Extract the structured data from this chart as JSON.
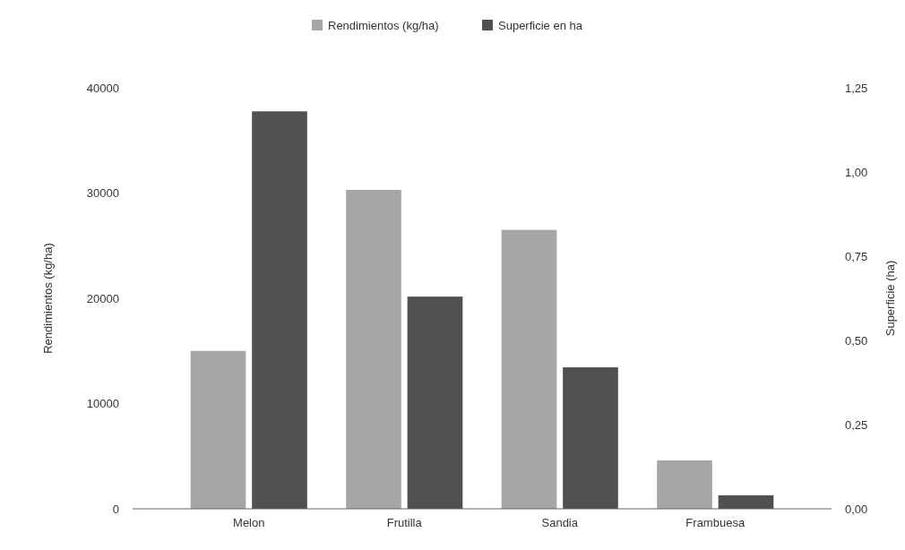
{
  "chart_data": {
    "type": "bar",
    "categories": [
      "Melon",
      "Frutilla",
      "Sandia",
      "Frambuesa"
    ],
    "series": [
      {
        "name": "Rendimientos (kg/ha)",
        "color": "#a6a6a6",
        "values": [
          15000,
          30300,
          26500,
          4600
        ]
      },
      {
        "name": "Superficie en ha",
        "color": "#505050",
        "values": [
          1.18,
          0.63,
          0.42,
          0.04
        ],
        "axis": "y2"
      }
    ],
    "ylabel": "Rendimientos (kg/ha)",
    "y2label": "Superficie (ha)",
    "ylim": [
      0,
      40000
    ],
    "yticks": [
      0,
      10000,
      20000,
      30000,
      40000
    ],
    "y2lim": [
      0,
      1.25
    ],
    "y2ticks": [
      {
        "value": 0,
        "label": "0,00"
      },
      {
        "value": 0.25,
        "label": "0,25"
      },
      {
        "value": 0.5,
        "label": "0,50"
      },
      {
        "value": 0.75,
        "label": "0,75"
      },
      {
        "value": 1,
        "label": "1,00"
      },
      {
        "value": 1.25,
        "label": "1,25"
      }
    ],
    "legend": "top",
    "grid": false
  }
}
